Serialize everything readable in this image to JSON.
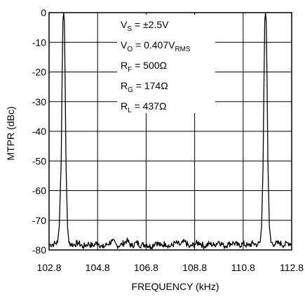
{
  "chart_data": {
    "type": "line",
    "xlabel": "FREQUENCY (kHz)",
    "ylabel": "MTPR (dBc)",
    "xlim": [
      102.8,
      112.8
    ],
    "ylim": [
      -80,
      0
    ],
    "xticks": [
      "102.8",
      "104.8",
      "106.8",
      "108.8",
      "110.8",
      "112.8"
    ],
    "yticks": [
      "0",
      "-10",
      "-20",
      "-30",
      "-40",
      "-50",
      "-60",
      "-70",
      "-80"
    ],
    "grid": true,
    "tones": [
      103.4,
      111.7
    ],
    "noise_floor": -78,
    "annotations": [
      {
        "main": "V",
        "sub": "S",
        "rest": " = ±2.5V",
        "rest_sub": ""
      },
      {
        "main": "V",
        "sub": "O",
        "rest": " = 0.407V",
        "rest_sub": "RMS"
      },
      {
        "main": "R",
        "sub": "F",
        "rest": " = 500Ω",
        "rest_sub": ""
      },
      {
        "main": "R",
        "sub": "G",
        "rest": " = 174Ω",
        "rest_sub": ""
      },
      {
        "main": "R",
        "sub": "L",
        "rest": " = 437Ω",
        "rest_sub": ""
      }
    ],
    "series": [
      {
        "values": [
          [
            102.8,
            -78.2
          ],
          [
            103.0,
            -78.0
          ],
          [
            103.15,
            -77.5
          ],
          [
            103.22,
            -72
          ],
          [
            103.3,
            -50
          ],
          [
            103.34,
            -20
          ],
          [
            103.37,
            -3
          ],
          [
            103.4,
            0
          ],
          [
            103.43,
            -3
          ],
          [
            103.46,
            -22
          ],
          [
            103.5,
            -52
          ],
          [
            103.56,
            -72
          ],
          [
            103.62,
            -77.6
          ],
          [
            103.8,
            -78.3
          ],
          [
            104.0,
            -77.6
          ],
          [
            104.2,
            -78.9
          ],
          [
            104.4,
            -77.9
          ],
          [
            104.6,
            -78.6
          ],
          [
            104.8,
            -77.4
          ],
          [
            105.0,
            -79.2
          ],
          [
            105.2,
            -78.1
          ],
          [
            105.4,
            -77.0
          ],
          [
            105.6,
            -78.5
          ],
          [
            105.8,
            -78.2
          ],
          [
            106.0,
            -76.8
          ],
          [
            106.2,
            -78.7
          ],
          [
            106.4,
            -77.5
          ],
          [
            106.6,
            -78.4
          ],
          [
            106.8,
            -78.0
          ],
          [
            107.0,
            -79.0
          ],
          [
            107.2,
            -77.3
          ],
          [
            107.4,
            -78.6
          ],
          [
            107.6,
            -77.8
          ],
          [
            107.8,
            -78.9
          ],
          [
            108.0,
            -77.6
          ],
          [
            108.2,
            -78.3
          ],
          [
            108.4,
            -77.2
          ],
          [
            108.6,
            -79.1
          ],
          [
            108.8,
            -78.0
          ],
          [
            109.0,
            -77.5
          ],
          [
            109.2,
            -78.8
          ],
          [
            109.4,
            -77.9
          ],
          [
            109.6,
            -78.4
          ],
          [
            109.8,
            -77.1
          ],
          [
            110.0,
            -78.7
          ],
          [
            110.2,
            -78.0
          ],
          [
            110.4,
            -77.6
          ],
          [
            110.6,
            -78.5
          ],
          [
            110.8,
            -77.9
          ],
          [
            111.0,
            -78.6
          ],
          [
            111.2,
            -77.8
          ],
          [
            111.4,
            -78.2
          ],
          [
            111.5,
            -77.4
          ],
          [
            111.56,
            -72
          ],
          [
            111.62,
            -52
          ],
          [
            111.66,
            -22
          ],
          [
            111.69,
            -3
          ],
          [
            111.72,
            0
          ],
          [
            111.75,
            -3
          ],
          [
            111.78,
            -20
          ],
          [
            111.82,
            -50
          ],
          [
            111.88,
            -72
          ],
          [
            111.95,
            -77.5
          ],
          [
            112.1,
            -78.1
          ],
          [
            112.3,
            -77.6
          ],
          [
            112.5,
            -78.4
          ],
          [
            112.65,
            -77.5
          ],
          [
            112.8,
            -78.0
          ]
        ]
      }
    ]
  }
}
